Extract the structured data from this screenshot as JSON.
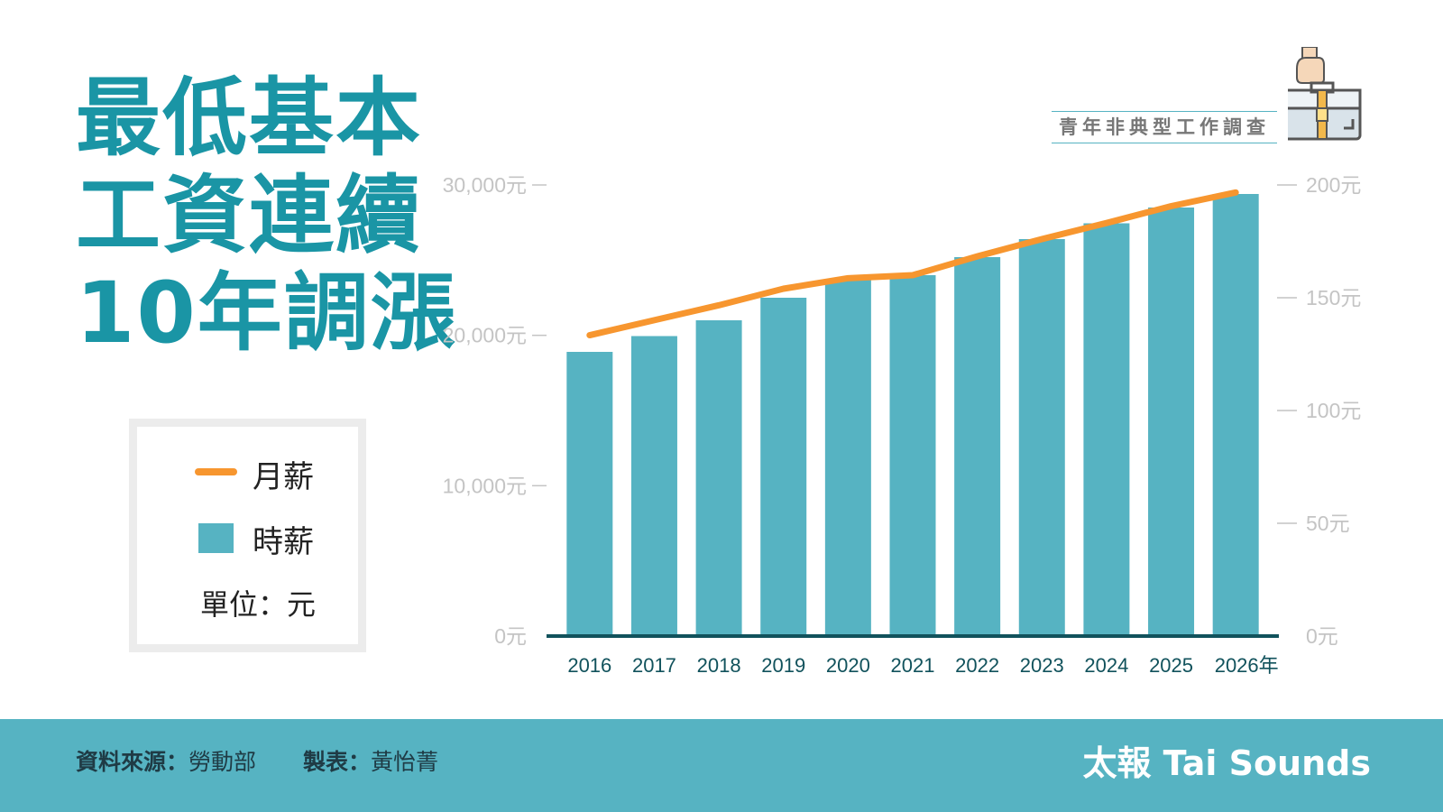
{
  "title": {
    "line1": "最低基本",
    "line2": "工資連續",
    "line3": "10年調漲"
  },
  "badge": "青年非典型工作調查",
  "legend": {
    "monthly_label": "月薪",
    "hourly_label": "時薪",
    "unit_label": "單位：元"
  },
  "footer": {
    "source_label": "資料來源：",
    "source_value": "勞動部",
    "maker_label": "製表：",
    "maker_value": "黃怡菁",
    "brand": "太報 Tai Sounds"
  },
  "colors": {
    "accent": "#1a95a5",
    "bar": "#56b3c2",
    "line": "#f7962f",
    "axis": "#11525c",
    "tick": "#c4c4c4"
  },
  "chart_data": {
    "type": "bar",
    "categories": [
      "2016",
      "2017",
      "2018",
      "2019",
      "2020",
      "2021",
      "2022",
      "2023",
      "2024",
      "2025",
      "2026年"
    ],
    "series": [
      {
        "name": "時薪",
        "type": "bar",
        "axis": "right",
        "values": [
          126,
          133,
          140,
          150,
          158,
          160,
          168,
          176,
          183,
          190,
          196
        ]
      },
      {
        "name": "月薪",
        "type": "line",
        "axis": "left",
        "values": [
          20008,
          21009,
          22000,
          23100,
          23800,
          24000,
          25250,
          26400,
          27470,
          28590,
          29500
        ]
      }
    ],
    "y_left": {
      "ticks": [
        "0元",
        "10,000元",
        "20,000元",
        "30,000元"
      ],
      "range": [
        0,
        30000
      ]
    },
    "y_right": {
      "ticks": [
        "0元",
        "50元",
        "100元",
        "150元",
        "200元"
      ],
      "range": [
        0,
        200
      ]
    },
    "grid": false
  }
}
